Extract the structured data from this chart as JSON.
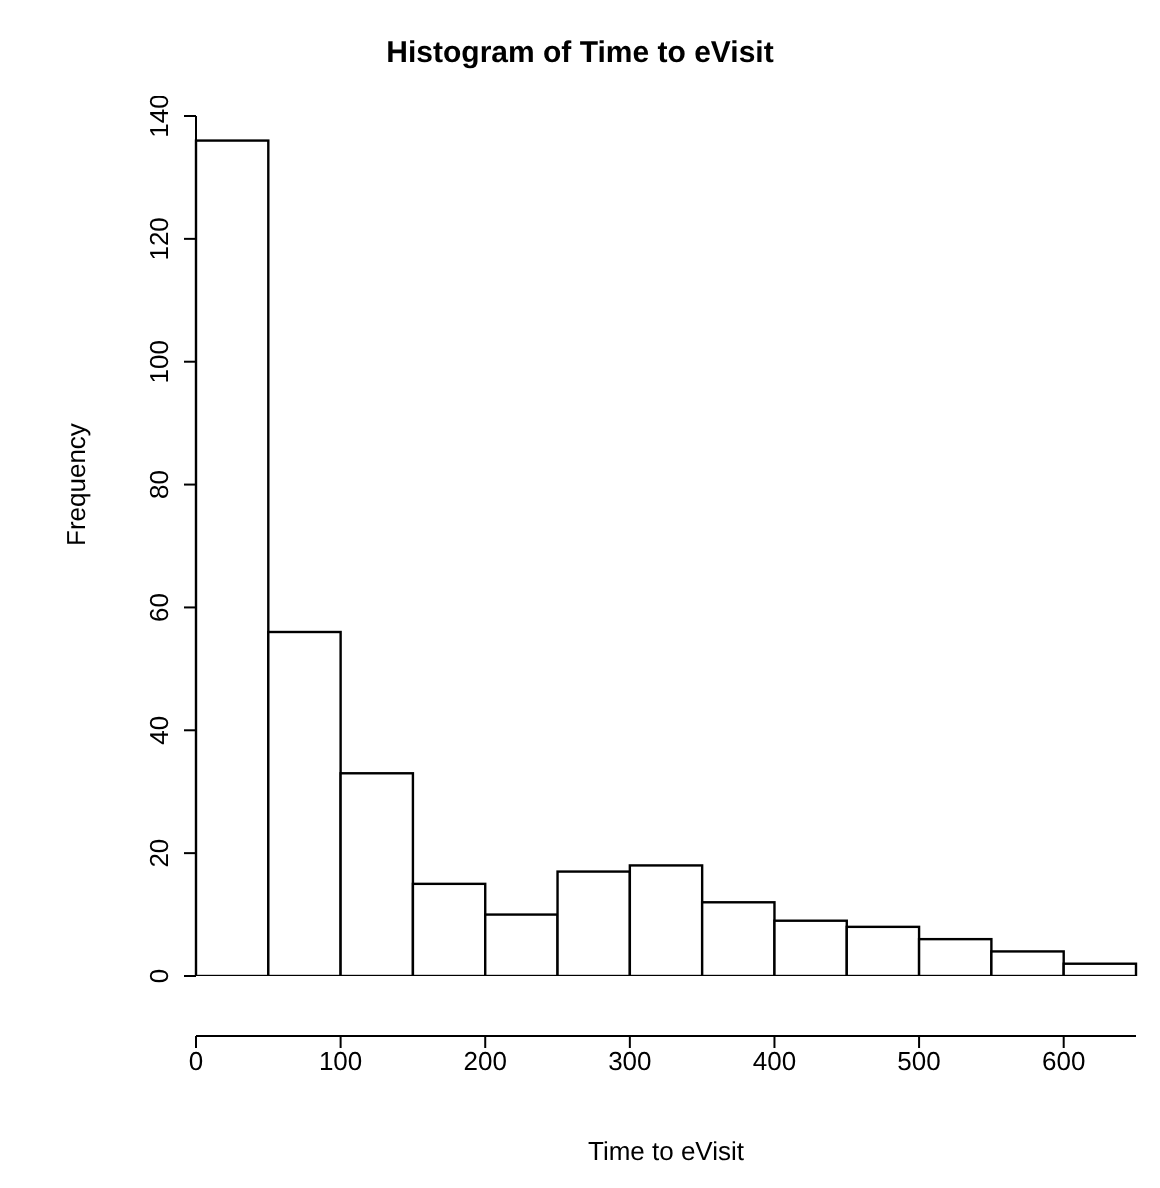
{
  "chart_data": {
    "type": "histogram",
    "title": "Histogram of Time to eVisit",
    "xlabel": "Time to eVisit",
    "ylabel": "Frequency",
    "bins": [
      0,
      50,
      100,
      150,
      200,
      250,
      300,
      350,
      400,
      450,
      500,
      550,
      600,
      650
    ],
    "values": [
      136,
      56,
      33,
      15,
      10,
      17,
      18,
      12,
      9,
      8,
      6,
      4,
      2
    ],
    "color": "#ffffff",
    "xlim": [
      0,
      650
    ],
    "xticks": [
      0,
      100,
      200,
      300,
      400,
      500,
      600
    ],
    "ylim": [
      0,
      140
    ],
    "yticks": [
      0,
      20,
      40,
      60,
      80,
      100,
      120,
      140
    ],
    "grid": false,
    "legend": false
  }
}
